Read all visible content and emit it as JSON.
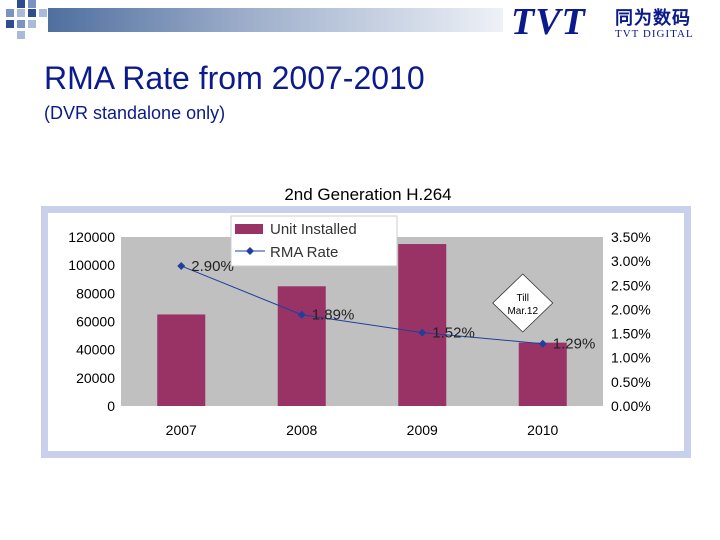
{
  "slide": {
    "title": "RMA Rate from 2007-2010",
    "subtitle": "(DVR standalone only)"
  },
  "logo": {
    "main": "TVT",
    "chinese": "同为数码",
    "sub": "TVT DIGITAL"
  },
  "colors": {
    "bar": "#993366",
    "line": "#1f3f9f",
    "plot_bg": "#c0c0c0",
    "frame": "#c8d0ec"
  },
  "chart_data": {
    "type": "bar",
    "title": "2nd Generation H.264",
    "categories": [
      "2007",
      "2008",
      "2009",
      "2010"
    ],
    "series": [
      {
        "name": "Unit Installed",
        "type": "bar",
        "axis": "left",
        "values": [
          65000,
          85000,
          115000,
          45000
        ]
      },
      {
        "name": "RMA Rate",
        "type": "line",
        "axis": "right",
        "values": [
          2.9,
          1.89,
          1.52,
          1.29
        ],
        "labels": [
          "2.90%",
          "1.89%",
          "1.52%",
          "1.29%"
        ]
      }
    ],
    "ylim_left": [
      0,
      120000
    ],
    "yticks_left": [
      "0",
      "20000",
      "40000",
      "60000",
      "80000",
      "100000",
      "120000"
    ],
    "ylim_right": [
      0,
      3.5
    ],
    "yticks_right": [
      "0.00%",
      "0.50%",
      "1.00%",
      "1.50%",
      "2.00%",
      "2.50%",
      "3.00%",
      "3.50%"
    ],
    "legend_position": "top-left",
    "annotation": {
      "text_lines": [
        "Till",
        "Mar.12"
      ],
      "category": "2010"
    }
  }
}
